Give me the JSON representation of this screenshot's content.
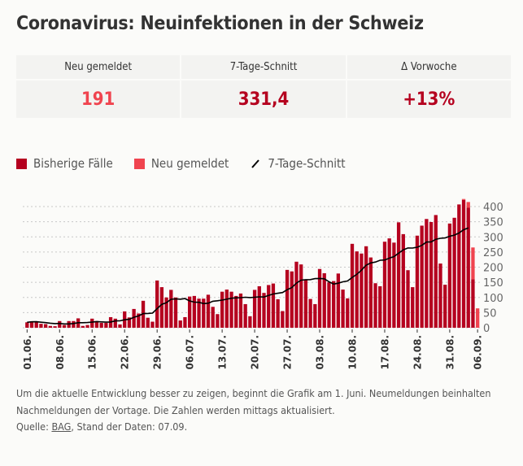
{
  "title": "Coronavirus: Neuinfektionen in der Schweiz",
  "kpis": [
    {
      "label": "Neu gemeldet",
      "value": "191"
    },
    {
      "label": "7-Tage-Schnitt",
      "value": "331,4"
    },
    {
      "label": "Δ Vorwoche",
      "value": "+13%"
    }
  ],
  "colors": {
    "prior": "#b5001f",
    "new": "#f0444f",
    "avg": "#000000",
    "grid": "#c8c8c8"
  },
  "chart_data": {
    "type": "bar",
    "stacked": true,
    "legend": [
      "Bisherige Fälle",
      "Neu gemeldet",
      "7-Tage-Schnitt"
    ],
    "legend_placement": "top-left",
    "x_start": "01.06.",
    "x_end": "06.09.",
    "x_ticks": [
      "01.06.",
      "08.06.",
      "15.06.",
      "22.06.",
      "29.06.",
      "06.07.",
      "13.07.",
      "20.07.",
      "27.07.",
      "03.08.",
      "10.08.",
      "17.08.",
      "24.08.",
      "31.08.",
      "06.09."
    ],
    "y_ticks": [
      0,
      50,
      100,
      150,
      200,
      250,
      300,
      350,
      400
    ],
    "ylim": [
      0,
      430
    ],
    "y_axis_side": "right",
    "grid": "horizontal dotted",
    "series": [
      {
        "name": "Bisherige Fälle",
        "values": [
          18,
          21,
          21,
          13,
          12,
          6,
          5,
          22,
          9,
          22,
          22,
          31,
          6,
          9,
          30,
          22,
          16,
          16,
          35,
          30,
          11,
          54,
          34,
          62,
          47,
          89,
          33,
          20,
          156,
          134,
          100,
          125,
          100,
          24,
          35,
          103,
          105,
          96,
          96,
          109,
          69,
          45,
          119,
          126,
          119,
          105,
          113,
          78,
          38,
          125,
          137,
          115,
          141,
          146,
          94,
          55,
          191,
          186,
          218,
          209,
          158,
          95,
          78,
          194,
          180,
          150,
          154,
          179,
          126,
          97,
          277,
          252,
          245,
          269,
          232,
          147,
          137,
          284,
          295,
          281,
          348,
          309,
          190,
          134,
          304,
          337,
          359,
          349,
          372,
          212,
          142,
          344,
          363,
          407,
          422,
          396,
          160,
          0
        ]
      },
      {
        "name": "Neu gemeldet",
        "values": [
          0,
          0,
          0,
          0,
          0,
          0,
          0,
          0,
          0,
          0,
          0,
          0,
          0,
          0,
          0,
          0,
          0,
          0,
          0,
          0,
          0,
          0,
          0,
          0,
          0,
          0,
          0,
          0,
          0,
          0,
          0,
          0,
          0,
          0,
          0,
          0,
          0,
          0,
          0,
          0,
          0,
          0,
          0,
          0,
          0,
          0,
          0,
          0,
          0,
          0,
          0,
          0,
          0,
          0,
          0,
          0,
          0,
          0,
          0,
          0,
          0,
          0,
          0,
          0,
          0,
          0,
          0,
          0,
          0,
          0,
          0,
          0,
          0,
          0,
          0,
          0,
          0,
          0,
          0,
          0,
          0,
          0,
          0,
          0,
          0,
          0,
          0,
          0,
          0,
          0,
          0,
          0,
          0,
          0,
          3,
          19,
          105,
          64
        ]
      }
    ]
  },
  "note": {
    "line1": "Um die aktuelle Entwicklung besser zu zeigen, beginnt die Grafik am 1. Juni. Neumeldungen beinhalten Nachmeldungen der Vortage. Die Zahlen werden mittags aktualisiert.",
    "source_prefix": "Quelle: ",
    "source_link": "BAG",
    "source_suffix": ", Stand der Daten: 07.09."
  }
}
